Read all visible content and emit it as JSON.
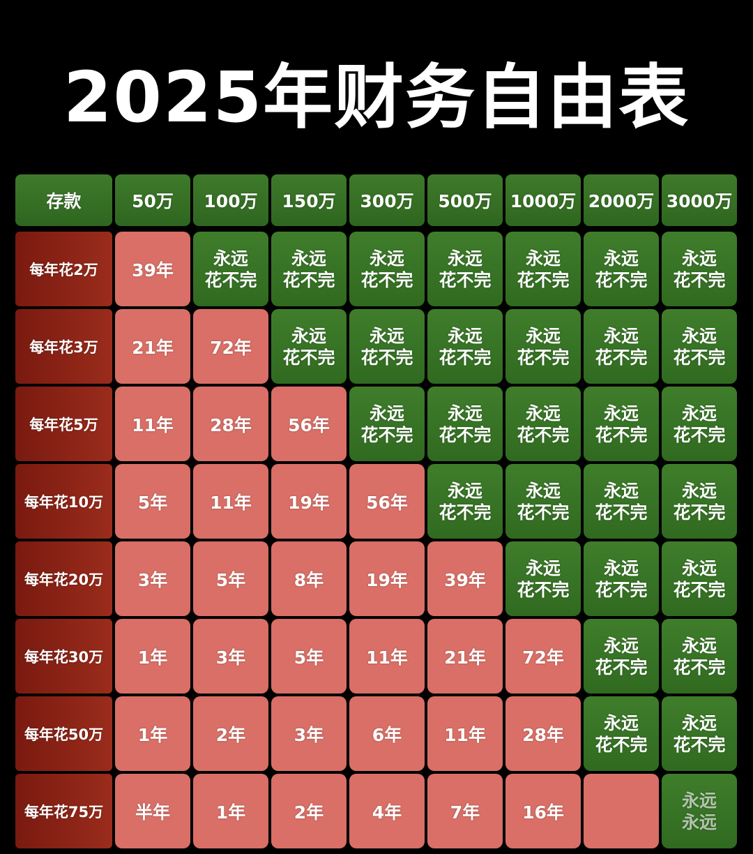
{
  "title": "2025年财务自由表",
  "header": {
    "corner": "存款",
    "columns": [
      "50万",
      "100万",
      "150万",
      "300万",
      "500万",
      "1000万",
      "2000万",
      "3000万"
    ]
  },
  "colors": {
    "background": "#000000",
    "header_green": "#37711f",
    "row_header_red": "#8a2316",
    "years_cell": "#d96f66",
    "forever_cell": "#37711f"
  },
  "rows": [
    {
      "label": "每年花2万",
      "cells": [
        "39年",
        "永远\n花不完",
        "永远\n花不完",
        "永远\n花不完",
        "永远\n花不完",
        "永远\n花不完",
        "永远\n花不完",
        "永远\n花不完"
      ]
    },
    {
      "label": "每年花3万",
      "cells": [
        "21年",
        "72年",
        "永远\n花不完",
        "永远\n花不完",
        "永远\n花不完",
        "永远\n花不完",
        "永远\n花不完",
        "永远\n花不完"
      ]
    },
    {
      "label": "每年花5万",
      "cells": [
        "11年",
        "28年",
        "56年",
        "永远\n花不完",
        "永远\n花不完",
        "永远\n花不完",
        "永远\n花不完",
        "永远\n花不完"
      ]
    },
    {
      "label": "每年花10万",
      "cells": [
        "5年",
        "11年",
        "19年",
        "56年",
        "永远\n花不完",
        "永远\n花不完",
        "永远\n花不完",
        "永远\n花不完"
      ]
    },
    {
      "label": "每年花20万",
      "cells": [
        "3年",
        "5年",
        "8年",
        "19年",
        "39年",
        "永远\n花不完",
        "永远\n花不完",
        "永远\n花不完"
      ]
    },
    {
      "label": "每年花30万",
      "cells": [
        "1年",
        "3年",
        "5年",
        "11年",
        "21年",
        "72年",
        "永远\n花不完",
        "永远\n花不完"
      ]
    },
    {
      "label": "每年花50万",
      "cells": [
        "1年",
        "2年",
        "3年",
        "6年",
        "11年",
        "28年",
        "永远\n花不完",
        "永远\n花不完"
      ]
    },
    {
      "label": "每年花75万",
      "cells": [
        "半年",
        "1年",
        "2年",
        "4年",
        "7年",
        "16年",
        "",
        "永远\n永远"
      ]
    }
  ]
}
